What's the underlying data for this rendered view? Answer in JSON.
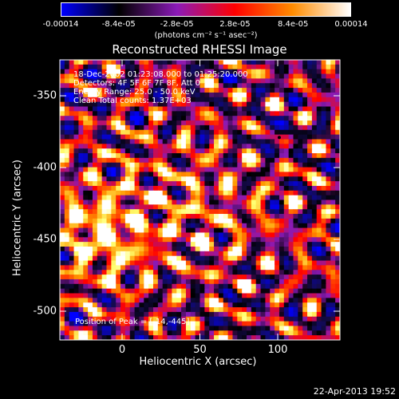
{
  "chart_data": {
    "type": "heatmap",
    "title": "Reconstructed RHESSI Image",
    "xlabel": "Heliocentric X (arcsec)",
    "ylabel": "Heliocentric Y (arcsec)",
    "xlim": [
      -40,
      140
    ],
    "ylim": [
      -520,
      -325
    ],
    "xticks": [
      "0",
      "50",
      "100"
    ],
    "xtick_values": [
      0,
      50,
      100
    ],
    "yticks": [
      "-350",
      "-400",
      "-450",
      "-500"
    ],
    "ytick_values": [
      -350,
      -400,
      -450,
      -500
    ],
    "colorbar": {
      "min": -0.00014,
      "max": 0.00014,
      "tick_labels": [
        "-0.00014",
        "-8.4e-05",
        "-2.8e-05",
        "2.8e-05",
        "8.4e-05",
        "0.00014"
      ],
      "tick_values": [
        -0.00014,
        -8.4e-05,
        -2.8e-05,
        2.8e-05,
        8.4e-05,
        0.00014
      ],
      "units": "(photons cm⁻² s⁻¹ asec⁻²)",
      "colors": [
        "#0000ff",
        "#000000",
        "#8b1ab8",
        "#ff0000",
        "#ff8c00",
        "#ffffff"
      ]
    },
    "annotations": {
      "time_range": "18-Dec-2002 01:23:08.000 to 01:25:20.000",
      "detectors": "Detectors: 4F 5F 6F 7F 8F, Att 0",
      "energy": "Energy Range: 25.0 - 50.0 keV",
      "clean": "Clean     Total counts: 1.37E+03",
      "peak": "Position of Peak = [-14,-445]"
    },
    "peak": [
      -14,
      -445
    ],
    "min_location": [
      101,
      -379
    ]
  },
  "footer": {
    "date": "22-Apr-2013 19:52"
  }
}
